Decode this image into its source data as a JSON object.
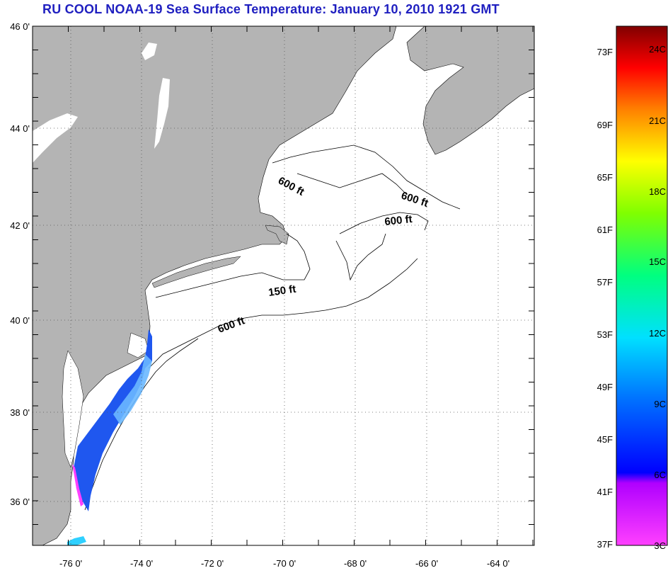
{
  "title": "RU COOL  NOAA-19  Sea Surface Temperature:  January 10, 2010 1921 GMT",
  "map": {
    "lat_ticks": [
      "46 0'",
      "44 0'",
      "42 0'",
      "40 0'",
      "38 0'",
      "36 0'"
    ],
    "lon_ticks": [
      "-76 0'",
      "-74 0'",
      "-72 0'",
      "-70 0'",
      "-68 0'",
      "-66 0'",
      "-64 0'"
    ],
    "land_color": "#b4b4b4",
    "water_color": "#ffffff",
    "contour_labels": [
      {
        "text": "600 ft",
        "rotation": 28
      },
      {
        "text": "600 ft",
        "rotation": 18
      },
      {
        "text": "600 ft",
        "rotation": -6
      },
      {
        "text": "150 ft",
        "rotation": -8
      },
      {
        "text": "600 ft",
        "rotation": -20
      }
    ]
  },
  "colorbar": {
    "fahrenheit_labels": [
      "73F",
      "69F",
      "65F",
      "61F",
      "57F",
      "53F",
      "49F",
      "45F",
      "41F",
      "37F"
    ],
    "celsius_labels": [
      "24C",
      "21C",
      "18C",
      "15C",
      "12C",
      "9C",
      "6C",
      "3C"
    ],
    "colors": [
      "#ff40ff",
      "#b000ff",
      "#0000ff",
      "#0070ff",
      "#00e0ff",
      "#00ff80",
      "#80ff00",
      "#ffff00",
      "#ff8000",
      "#ff0000",
      "#b00000",
      "#800000"
    ]
  }
}
